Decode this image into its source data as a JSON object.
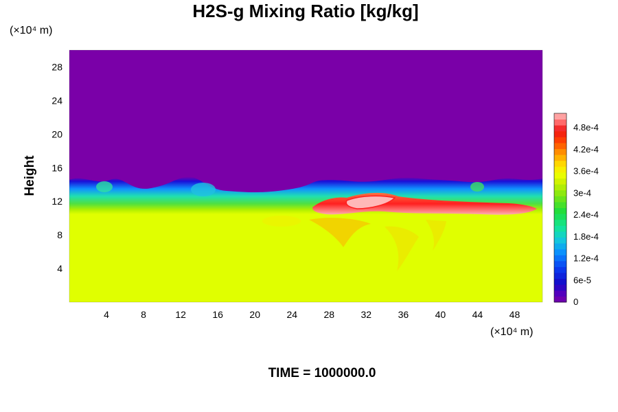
{
  "chart_data": {
    "type": "heatmap",
    "title": "H2S-g Mixing Ratio [kg/kg]",
    "ylabel": "Height",
    "x_unit": "(×10⁴ m)",
    "y_unit": "(×10⁴ m)",
    "x_ticks": [
      4,
      8,
      12,
      16,
      20,
      24,
      28,
      32,
      36,
      40,
      44,
      48
    ],
    "y_ticks": [
      4,
      8,
      12,
      16,
      20,
      24,
      28
    ],
    "xlim": [
      0,
      51
    ],
    "ylim": [
      0,
      30
    ],
    "colorbar": {
      "range": [
        0,
        0.00052
      ],
      "labels": [
        "0",
        "6e-5",
        "1.2e-4",
        "1.8e-4",
        "2.4e-4",
        "3e-4",
        "3.6e-4",
        "4.2e-4",
        "4.8e-4"
      ],
      "values": [
        0,
        6e-05,
        0.00012,
        0.00018,
        0.00024,
        0.0003,
        0.00036,
        0.00042,
        0.00048
      ]
    },
    "regions": {
      "lower_layer": {
        "y_range": [
          0,
          11
        ],
        "value": 0.00035
      },
      "upper_layer": {
        "y_range": [
          15,
          30
        ],
        "value": 0
      },
      "transition_top_y": 14.5,
      "high_concentration_band": {
        "x_range": [
          26,
          50
        ],
        "y_range": [
          10.5,
          13
        ],
        "max_value": 0.00052
      }
    },
    "footer": "TIME = 1000000.0"
  }
}
